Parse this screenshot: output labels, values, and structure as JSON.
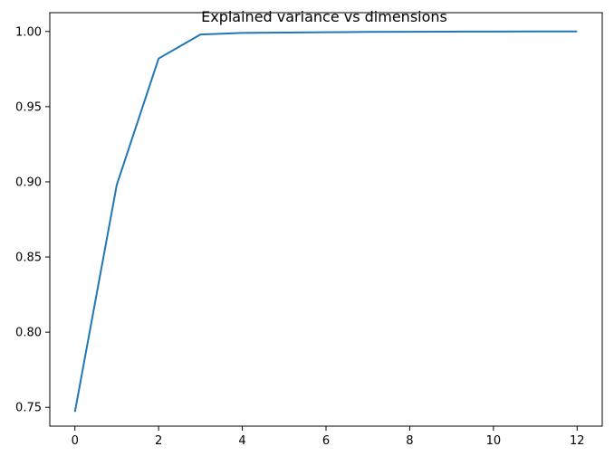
{
  "chart_data": {
    "type": "line",
    "title": "Explained variance vs dimensions",
    "xlabel": "",
    "ylabel": "",
    "xlim": [
      -0.6,
      12.6
    ],
    "ylim": [
      0.7375,
      1.0125
    ],
    "x_ticks": [
      0,
      2,
      4,
      6,
      8,
      10,
      12
    ],
    "y_ticks": [
      0.75,
      0.8,
      0.85,
      0.9,
      0.95,
      1.0
    ],
    "y_tick_labels": [
      "0.75",
      "0.80",
      "0.85",
      "0.90",
      "0.95",
      "1.00"
    ],
    "grid": false,
    "series": [
      {
        "color": "#1f77b4",
        "x": [
          0,
          1,
          2,
          3,
          4,
          5,
          6,
          7,
          8,
          9,
          10,
          11,
          12
        ],
        "y": [
          0.747,
          0.898,
          0.982,
          0.998,
          0.999,
          0.9993,
          0.9995,
          0.9997,
          0.9998,
          0.9999,
          0.99995,
          0.99998,
          1.0
        ]
      }
    ]
  }
}
